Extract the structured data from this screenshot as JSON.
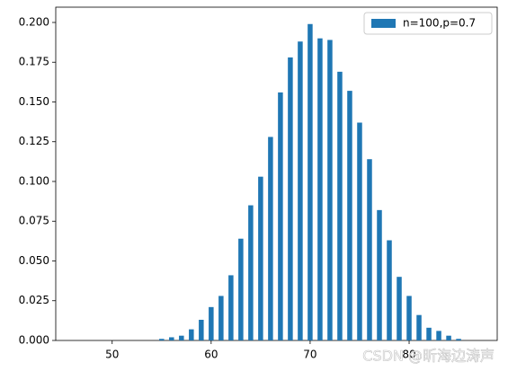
{
  "chart_data": {
    "type": "bar",
    "x": [
      55,
      56,
      57,
      58,
      59,
      60,
      61,
      62,
      63,
      64,
      65,
      66,
      67,
      68,
      69,
      70,
      71,
      72,
      73,
      74,
      75,
      76,
      77,
      78,
      79,
      80,
      81,
      82,
      83,
      84,
      85
    ],
    "series": [
      {
        "name": "n=100,p=0.7",
        "color": "#1f77b4",
        "values": [
          0.001,
          0.002,
          0.003,
          0.007,
          0.013,
          0.021,
          0.028,
          0.041,
          0.064,
          0.085,
          0.103,
          0.128,
          0.156,
          0.178,
          0.188,
          0.199,
          0.19,
          0.189,
          0.169,
          0.157,
          0.137,
          0.114,
          0.082,
          0.063,
          0.04,
          0.028,
          0.016,
          0.008,
          0.006,
          0.003,
          0.001
        ]
      }
    ],
    "xlim": [
      44.3,
      88.9
    ],
    "ylim": [
      0,
      0.2096
    ],
    "xticks": [
      50,
      60,
      70,
      80
    ],
    "yticks": [
      {
        "value": 0,
        "label": "0.000"
      },
      {
        "value": 0.025,
        "label": "0.025"
      },
      {
        "value": 0.05,
        "label": "0.050"
      },
      {
        "value": 0.075,
        "label": "0.075"
      },
      {
        "value": 0.1,
        "label": "0.100"
      },
      {
        "value": 0.125,
        "label": "0.125"
      },
      {
        "value": 0.15,
        "label": "0.150"
      },
      {
        "value": 0.175,
        "label": "0.175"
      },
      {
        "value": 0.2,
        "label": "0.200"
      }
    ],
    "legend": "upper right",
    "watermark": "CSDN @昕海边涛声"
  }
}
